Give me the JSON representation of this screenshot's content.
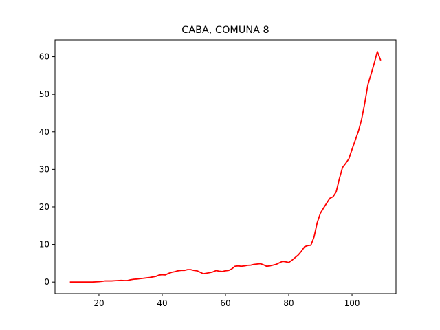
{
  "chart_data": {
    "type": "line",
    "title": "CABA, COMUNA 8",
    "xlabel": "",
    "ylabel": "",
    "xlim": [
      6.1,
      113.9
    ],
    "ylim": [
      -3.08,
      64.5
    ],
    "xticks": [
      20,
      40,
      60,
      80,
      100
    ],
    "yticks": [
      0,
      10,
      20,
      30,
      40,
      50,
      60
    ],
    "grid": false,
    "legend": "none",
    "series": [
      {
        "color": "#ff0000",
        "x": [
          11,
          12,
          13,
          14,
          15,
          16,
          17,
          18,
          19,
          20,
          21,
          22,
          23,
          24,
          25,
          26,
          27,
          28,
          29,
          30,
          31,
          32,
          33,
          34,
          35,
          36,
          37,
          38,
          39,
          40,
          41,
          42,
          43,
          44,
          45,
          46,
          47,
          48,
          49,
          50,
          51,
          52,
          53,
          54,
          55,
          56,
          57,
          58,
          59,
          60,
          61,
          62,
          63,
          64,
          65,
          66,
          67,
          68,
          69,
          70,
          71,
          72,
          73,
          74,
          75,
          76,
          77,
          78,
          79,
          80,
          81,
          82,
          83,
          84,
          85,
          86,
          87,
          88,
          89,
          90,
          91,
          92,
          93,
          94,
          95,
          96,
          97,
          98,
          99,
          100,
          101,
          102,
          103,
          104,
          105,
          106,
          107,
          108,
          109
        ],
        "y": [
          0,
          0,
          0,
          0,
          0,
          0,
          0,
          0,
          0.05,
          0.1,
          0.2,
          0.3,
          0.3,
          0.3,
          0.35,
          0.4,
          0.45,
          0.4,
          0.4,
          0.6,
          0.75,
          0.8,
          0.9,
          1.0,
          1.1,
          1.2,
          1.35,
          1.5,
          1.85,
          1.95,
          1.9,
          2.3,
          2.6,
          2.75,
          3.0,
          3.1,
          3.1,
          3.3,
          3.3,
          3.1,
          3.0,
          2.6,
          2.2,
          2.35,
          2.5,
          2.7,
          3.05,
          2.9,
          2.8,
          3.0,
          3.1,
          3.5,
          4.2,
          4.3,
          4.2,
          4.3,
          4.45,
          4.5,
          4.7,
          4.8,
          4.9,
          4.6,
          4.2,
          4.3,
          4.5,
          4.7,
          5.1,
          5.5,
          5.4,
          5.2,
          5.8,
          6.5,
          7.2,
          8.2,
          9.4,
          9.7,
          9.8,
          12.0,
          15.8,
          18.3,
          19.7,
          21.0,
          22.3,
          22.7,
          24.0,
          27.5,
          30.5,
          31.6,
          32.8,
          35.3,
          37.7,
          40.1,
          43.2,
          47.5,
          52.5,
          55.3,
          58.2,
          61.4,
          59.2
        ]
      }
    ]
  }
}
